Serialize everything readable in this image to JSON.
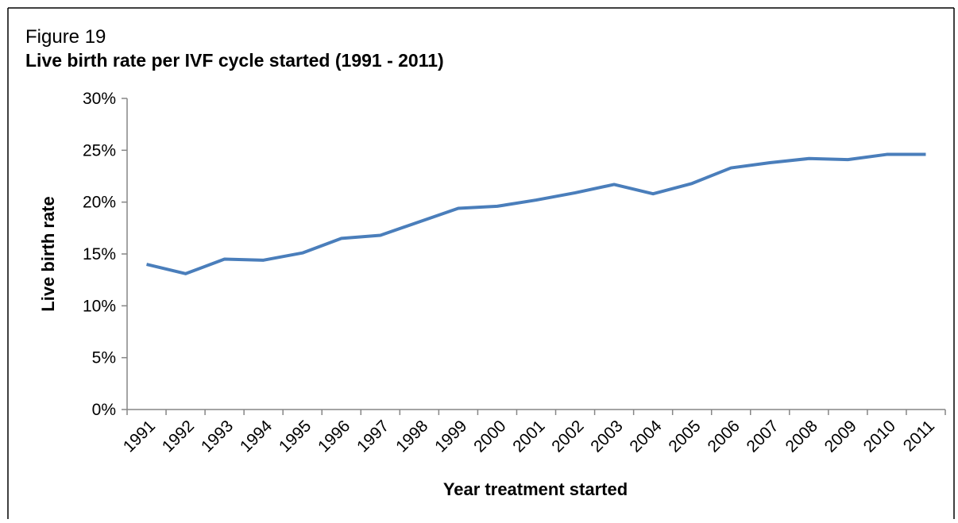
{
  "chart_data": {
    "type": "line",
    "title": "Figure 19",
    "subtitle": "Live birth rate per IVF cycle started (1991 - 2011)",
    "x_label": "Year treatment started",
    "y_label": "Live birth rate",
    "categories": [
      "1991",
      "1992",
      "1993",
      "1994",
      "1995",
      "1996",
      "1997",
      "1998",
      "1999",
      "2000",
      "2001",
      "2002",
      "2003",
      "2004",
      "2005",
      "2006",
      "2007",
      "2008",
      "2009",
      "2010",
      "2011"
    ],
    "series": [
      {
        "name": "Live birth rate",
        "color": "#4a7ebb",
        "values": [
          14.0,
          13.1,
          14.5,
          14.4,
          15.1,
          16.5,
          16.8,
          18.1,
          19.4,
          19.6,
          20.2,
          20.9,
          21.7,
          20.8,
          21.8,
          23.3,
          23.8,
          24.2,
          24.1,
          24.6,
          24.6
        ]
      }
    ],
    "ylim": [
      0,
      30
    ],
    "yticks": [
      {
        "value": 0,
        "label": "0%"
      },
      {
        "value": 5,
        "label": "5%"
      },
      {
        "value": 10,
        "label": "10%"
      },
      {
        "value": 15,
        "label": "15%"
      },
      {
        "value": 20,
        "label": "20%"
      },
      {
        "value": 25,
        "label": "25%"
      },
      {
        "value": 30,
        "label": "30%"
      }
    ],
    "grid": false
  }
}
